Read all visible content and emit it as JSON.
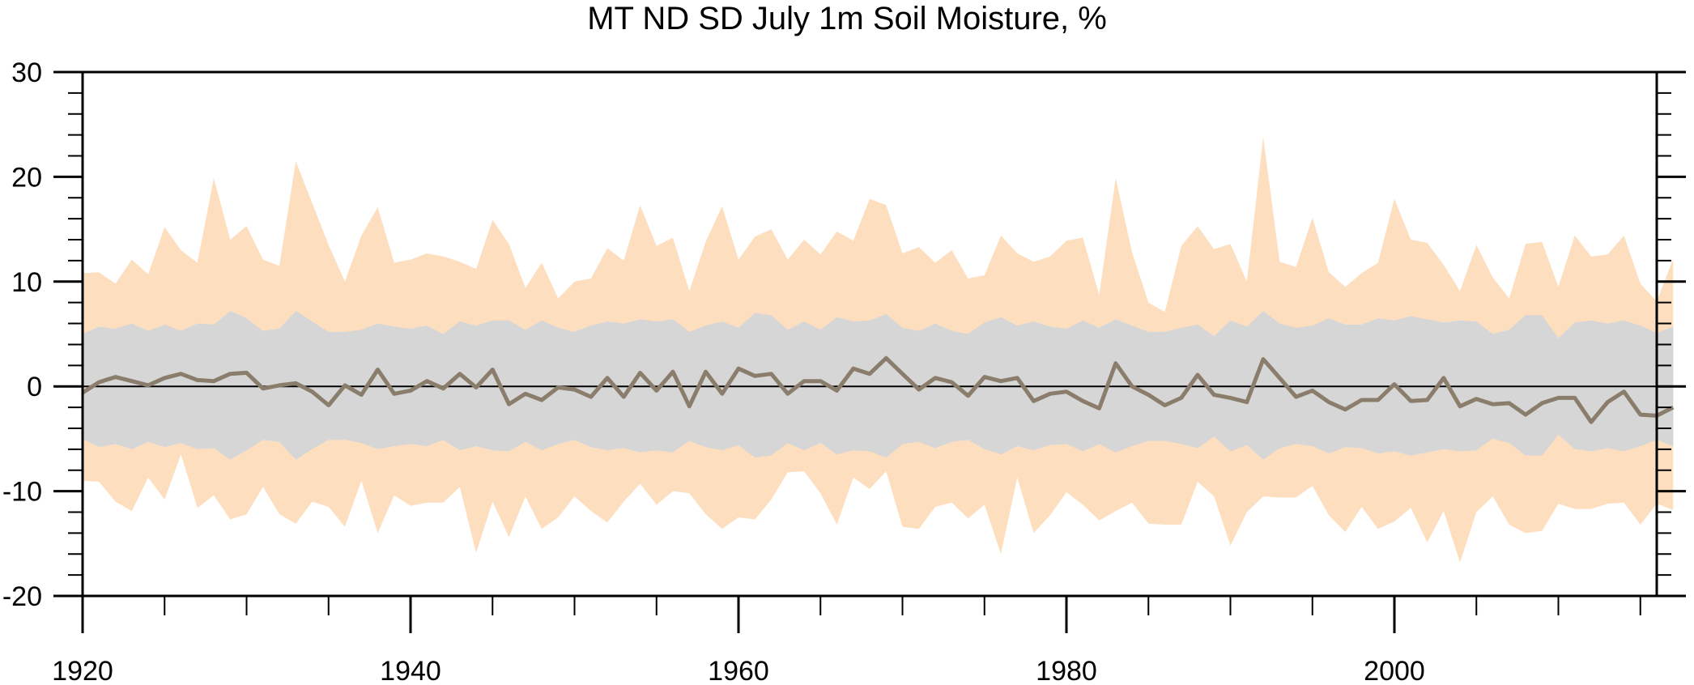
{
  "chart_data": {
    "type": "area",
    "title": "MT ND SD July 1m Soil Moisture, %",
    "xlabel": "",
    "ylabel": "",
    "xlim": [
      1920,
      2016
    ],
    "ylim": [
      -20,
      30
    ],
    "x_ticks": [
      1920,
      1940,
      1960,
      1980,
      2000
    ],
    "y_ticks": [
      -20,
      -10,
      0,
      10,
      20,
      30
    ],
    "x_tick_labels": [
      "1920",
      "1940",
      "1960",
      "1980",
      "2000"
    ],
    "y_tick_labels": [
      "-20",
      "-10",
      "0",
      "10",
      "20",
      "30"
    ],
    "grid": false,
    "legend": "none",
    "zero_line": true,
    "x_start_year": 1920,
    "series": [
      {
        "kind": "band",
        "color": "#fddfc0",
        "upper": [
          10.8,
          10.9,
          9.8,
          12.1,
          10.7,
          15.2,
          13,
          11.8,
          19.9,
          14,
          15.3,
          12.1,
          11.5,
          21.5,
          17.5,
          13.5,
          10,
          14.4,
          17.1,
          11.8,
          12.1,
          12.7,
          12.4,
          11.9,
          11.2,
          15.9,
          13.6,
          9.4,
          11.8,
          8.4,
          10,
          10.3,
          13.2,
          12,
          17.3,
          13.4,
          14.2,
          9.1,
          13.8,
          17.2,
          12.1,
          14.3,
          15,
          12.1,
          14,
          12.6,
          14.8,
          13.9,
          17.9,
          17.3,
          12.7,
          13.3,
          11.8,
          13,
          10.3,
          10.6,
          14.4,
          12.7,
          11.9,
          12.4,
          13.9,
          14.2,
          8.7,
          19.9,
          12.8,
          8,
          7.1,
          13.4,
          15.3,
          13.1,
          13.6,
          10,
          23.8,
          11.9,
          11.4,
          16.1,
          10.9,
          9.5,
          10.8,
          11.8,
          17.9,
          14,
          13.7,
          11.6,
          9.1,
          13.5,
          10.4,
          8.4,
          13.6,
          13.8,
          9.5,
          14.4,
          12.4,
          12.6,
          14.4,
          9.8,
          8.1,
          12.2
        ],
        "lower": [
          -9,
          -9.1,
          -11,
          -11.9,
          -8.7,
          -10.8,
          -6.5,
          -11.6,
          -10.4,
          -12.7,
          -12.2,
          -9.6,
          -12.2,
          -13.1,
          -11,
          -11.5,
          -13.4,
          -9,
          -14,
          -10.4,
          -11.4,
          -11.1,
          -11.1,
          -9.6,
          -15.9,
          -11,
          -14.4,
          -10.5,
          -13.6,
          -12.5,
          -10.5,
          -11.9,
          -13,
          -11,
          -9.3,
          -11.3,
          -10,
          -10.2,
          -12.2,
          -13.6,
          -12.5,
          -12.7,
          -10.8,
          -8.2,
          -8.1,
          -10.2,
          -13.2,
          -8.7,
          -9.8,
          -8.1,
          -13.4,
          -13.6,
          -11.5,
          -11.1,
          -12.6,
          -11.3,
          -16,
          -8.7,
          -14,
          -12.3,
          -10.1,
          -11.3,
          -12.8,
          -11.9,
          -11.1,
          -13.1,
          -13.2,
          -13.2,
          -9.1,
          -10.5,
          -15.2,
          -12,
          -10.5,
          -10.6,
          -10.6,
          -9.5,
          -12.3,
          -13.9,
          -11.5,
          -13.6,
          -12.9,
          -11.6,
          -14.9,
          -11.9,
          -16.8,
          -12,
          -10.5,
          -13.2,
          -14,
          -13.8,
          -11.2,
          -11.7,
          -11.7,
          -11.2,
          -11.1,
          -13.2,
          -11.2,
          -11.8
        ]
      },
      {
        "kind": "band",
        "color": "#d6d6d6",
        "upper": [
          5,
          5.7,
          5.5,
          6,
          5.3,
          5.9,
          5.3,
          6,
          5.9,
          7.2,
          6.5,
          5.3,
          5.5,
          7.2,
          6.2,
          5.2,
          5.2,
          5.4,
          6,
          5.7,
          5.5,
          5.8,
          5,
          6.2,
          5.8,
          6.3,
          6.3,
          5.4,
          6.3,
          5.6,
          5.2,
          5.8,
          6.2,
          6,
          6.4,
          6.2,
          6.4,
          5.2,
          5.8,
          6.2,
          5.6,
          7,
          6.8,
          5.4,
          6.2,
          5.4,
          6.6,
          6.2,
          6.3,
          6.9,
          5.6,
          5.3,
          6,
          5.3,
          5,
          6.1,
          6.6,
          5.8,
          6.2,
          5.7,
          5.5,
          6.3,
          5.6,
          6.4,
          5.8,
          5.2,
          5.2,
          5.6,
          5.9,
          4.8,
          6.3,
          5.7,
          7.2,
          6,
          5.6,
          5.8,
          6.5,
          5.9,
          5.9,
          6.5,
          6.3,
          6.7,
          6.4,
          6.1,
          6.3,
          6.2,
          5,
          5.4,
          6.8,
          6.8,
          4.6,
          6.1,
          6.3,
          6,
          6.3,
          5.8,
          5.1,
          5.7
        ],
        "lower": [
          -5,
          -5.8,
          -5.5,
          -6,
          -5.3,
          -5.8,
          -5.4,
          -6,
          -5.9,
          -7,
          -6.1,
          -5.1,
          -5.3,
          -7,
          -6,
          -5.1,
          -5.1,
          -5.4,
          -6,
          -5.7,
          -5.5,
          -5.7,
          -5.1,
          -6.1,
          -5.7,
          -6.1,
          -6.2,
          -5.3,
          -6.1,
          -5.5,
          -5.1,
          -5.8,
          -6.1,
          -5.9,
          -6.3,
          -6.1,
          -6.3,
          -5.2,
          -5.8,
          -6.1,
          -5.6,
          -6.8,
          -6.6,
          -5.4,
          -6.1,
          -5.4,
          -6.5,
          -6.1,
          -6.2,
          -6.8,
          -5.5,
          -5.3,
          -5.9,
          -5.3,
          -5.1,
          -6,
          -6.5,
          -5.7,
          -6.1,
          -5.6,
          -5.5,
          -6.2,
          -5.5,
          -6.3,
          -5.7,
          -5.2,
          -5.2,
          -5.5,
          -5.9,
          -4.8,
          -6.2,
          -5.6,
          -7,
          -5.9,
          -5.5,
          -5.7,
          -6.4,
          -5.8,
          -5.9,
          -6.4,
          -6.2,
          -6.6,
          -6.3,
          -6,
          -6.2,
          -6.1,
          -5,
          -5.4,
          -6.6,
          -6.6,
          -4.6,
          -6,
          -6.2,
          -5.9,
          -6.2,
          -5.7,
          -5.1,
          -5.7
        ]
      },
      {
        "kind": "line",
        "color": "#8b7d6b",
        "values": [
          -0.6,
          0.4,
          0.9,
          0.5,
          0.1,
          0.8,
          1.2,
          0.6,
          0.5,
          1.2,
          1.3,
          -0.2,
          0.1,
          0.3,
          -0.5,
          -1.8,
          0.1,
          -0.8,
          1.6,
          -0.7,
          -0.4,
          0.5,
          -0.2,
          1.2,
          -0.1,
          1.6,
          -1.7,
          -0.7,
          -1.3,
          -0.1,
          -0.3,
          -1,
          0.8,
          -1,
          1.3,
          -0.4,
          1.4,
          -1.9,
          1.4,
          -0.7,
          1.7,
          1,
          1.2,
          -0.7,
          0.5,
          0.5,
          -0.4,
          1.7,
          1.2,
          2.7,
          1.2,
          -0.3,
          0.8,
          0.4,
          -0.9,
          0.9,
          0.5,
          0.8,
          -1.4,
          -0.7,
          -0.5,
          -1.4,
          -2.1,
          2.2,
          0,
          -0.8,
          -1.8,
          -1.1,
          1.1,
          -0.8,
          -1.1,
          -1.5,
          2.6,
          0.8,
          -1,
          -0.4,
          -1.5,
          -2.2,
          -1.3,
          -1.3,
          0.2,
          -1.4,
          -1.3,
          0.8,
          -1.9,
          -1.2,
          -1.7,
          -1.6,
          -2.7,
          -1.6,
          -1.1,
          -1.1,
          -3.4,
          -1.5,
          -0.5,
          -2.7,
          -2.8,
          -2
        ]
      }
    ]
  }
}
